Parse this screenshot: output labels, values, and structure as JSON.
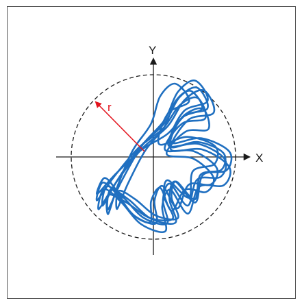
{
  "diagram": {
    "x_axis_label": "X",
    "y_axis_label": "Y",
    "radius_label": "r",
    "colors": {
      "trajectory": "#1f6fc0",
      "radius_arrow": "#e3141e",
      "axes": "#1a1a1a",
      "boundary_circle": "#1a1a1a",
      "frame": "#555555"
    }
  }
}
